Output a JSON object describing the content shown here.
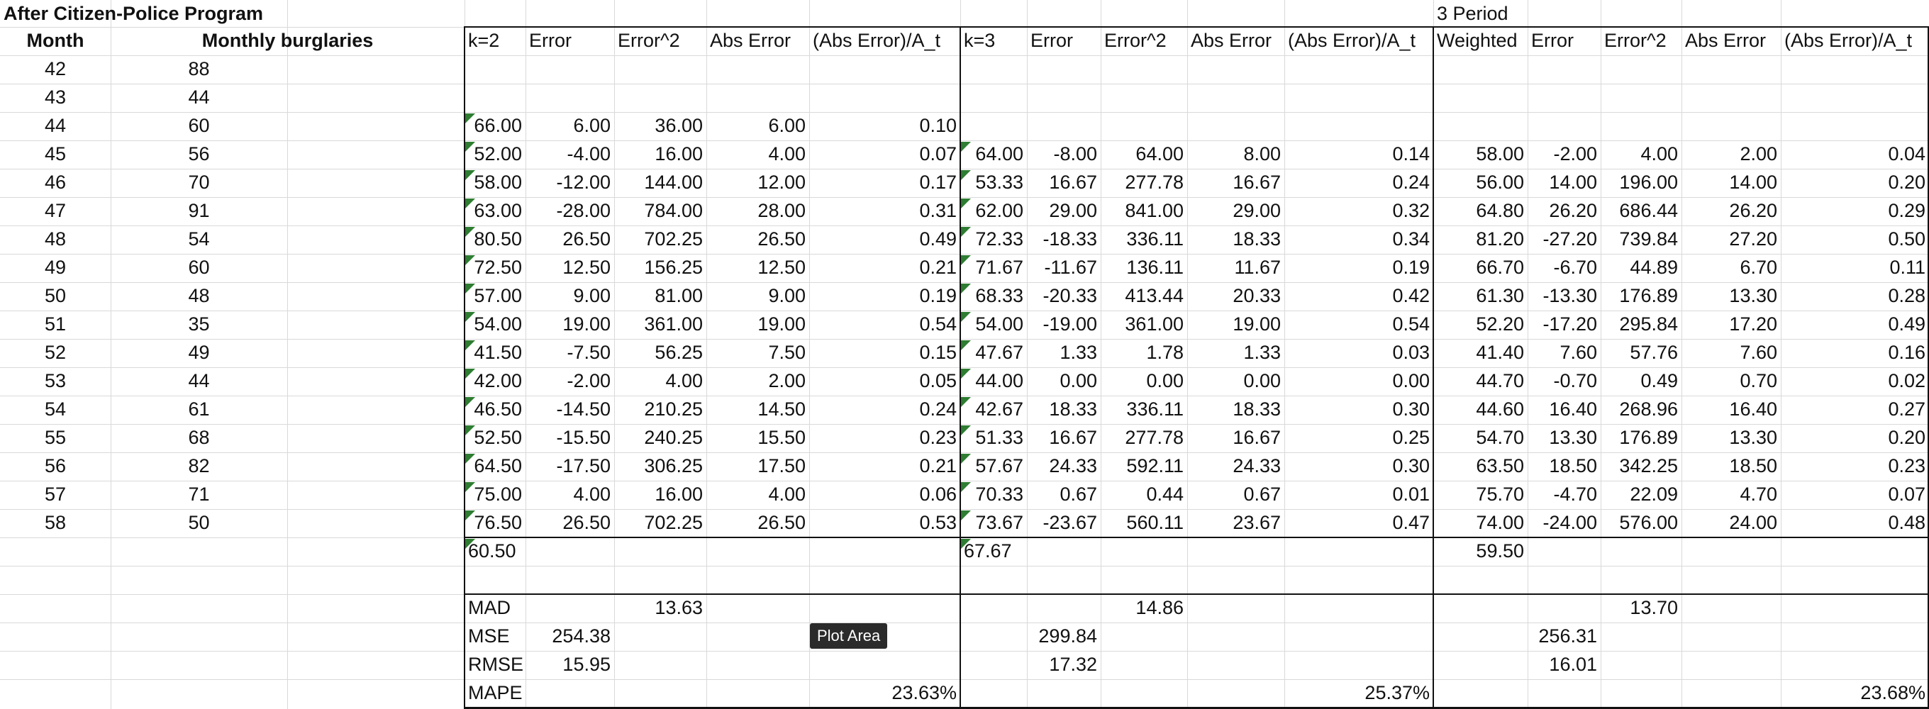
{
  "left": {
    "title": "After Citizen-Police Program",
    "month_header": "Month",
    "burglaries_header": "Monthly burglaries",
    "months": [
      "42",
      "43",
      "44",
      "45",
      "46",
      "47",
      "48",
      "49",
      "50",
      "51",
      "52",
      "53",
      "54",
      "55",
      "56",
      "57",
      "58"
    ],
    "burglaries": [
      "88",
      "44",
      "60",
      "56",
      "70",
      "91",
      "54",
      "60",
      "48",
      "35",
      "49",
      "44",
      "61",
      "68",
      "82",
      "71",
      "50"
    ]
  },
  "k2": {
    "headers": [
      "k=2",
      "Error",
      "Error^2",
      "Abs Error",
      "(Abs Error)/A_t"
    ],
    "rows": [
      [
        "66.00",
        "6.00",
        "36.00",
        "6.00",
        "0.10"
      ],
      [
        "52.00",
        "-4.00",
        "16.00",
        "4.00",
        "0.07"
      ],
      [
        "58.00",
        "-12.00",
        "144.00",
        "12.00",
        "0.17"
      ],
      [
        "63.00",
        "-28.00",
        "784.00",
        "28.00",
        "0.31"
      ],
      [
        "80.50",
        "26.50",
        "702.25",
        "26.50",
        "0.49"
      ],
      [
        "72.50",
        "12.50",
        "156.25",
        "12.50",
        "0.21"
      ],
      [
        "57.00",
        "9.00",
        "81.00",
        "9.00",
        "0.19"
      ],
      [
        "54.00",
        "19.00",
        "361.00",
        "19.00",
        "0.54"
      ],
      [
        "41.50",
        "-7.50",
        "56.25",
        "7.50",
        "0.15"
      ],
      [
        "42.00",
        "-2.00",
        "4.00",
        "2.00",
        "0.05"
      ],
      [
        "46.50",
        "-14.50",
        "210.25",
        "14.50",
        "0.24"
      ],
      [
        "52.50",
        "-15.50",
        "240.25",
        "15.50",
        "0.23"
      ],
      [
        "64.50",
        "-17.50",
        "306.25",
        "17.50",
        "0.21"
      ],
      [
        "75.00",
        "4.00",
        "16.00",
        "4.00",
        "0.06"
      ],
      [
        "76.50",
        "26.50",
        "702.25",
        "26.50",
        "0.53"
      ]
    ],
    "next_forecast": "60.50",
    "mad": "13.63",
    "mse": "254.38",
    "rmse": "15.95",
    "mape": "23.63%"
  },
  "k3": {
    "headers": [
      "k=3",
      "Error",
      "Error^2",
      "Abs Error",
      "(Abs Error)/A_t"
    ],
    "rows": [
      [
        "64.00",
        "-8.00",
        "64.00",
        "8.00",
        "0.14"
      ],
      [
        "53.33",
        "16.67",
        "277.78",
        "16.67",
        "0.24"
      ],
      [
        "62.00",
        "29.00",
        "841.00",
        "29.00",
        "0.32"
      ],
      [
        "72.33",
        "-18.33",
        "336.11",
        "18.33",
        "0.34"
      ],
      [
        "71.67",
        "-11.67",
        "136.11",
        "11.67",
        "0.19"
      ],
      [
        "68.33",
        "-20.33",
        "413.44",
        "20.33",
        "0.42"
      ],
      [
        "54.00",
        "-19.00",
        "361.00",
        "19.00",
        "0.54"
      ],
      [
        "47.67",
        "1.33",
        "1.78",
        "1.33",
        "0.03"
      ],
      [
        "44.00",
        "0.00",
        "0.00",
        "0.00",
        "0.00"
      ],
      [
        "42.67",
        "18.33",
        "336.11",
        "18.33",
        "0.30"
      ],
      [
        "51.33",
        "16.67",
        "277.78",
        "16.67",
        "0.25"
      ],
      [
        "57.67",
        "24.33",
        "592.11",
        "24.33",
        "0.30"
      ],
      [
        "70.33",
        "0.67",
        "0.44",
        "0.67",
        "0.01"
      ],
      [
        "73.67",
        "-23.67",
        "560.11",
        "23.67",
        "0.47"
      ]
    ],
    "next_forecast": "67.67",
    "mad": "14.86",
    "mse": "299.84",
    "rmse": "17.32",
    "mape": "25.37%"
  },
  "w3": {
    "section_title": "3 Period",
    "headers": [
      "Weighted",
      "Error",
      "Error^2",
      "Abs Error",
      "(Abs Error)/A_t"
    ],
    "rows": [
      [
        "58.00",
        "-2.00",
        "4.00",
        "2.00",
        "0.04"
      ],
      [
        "56.00",
        "14.00",
        "196.00",
        "14.00",
        "0.20"
      ],
      [
        "64.80",
        "26.20",
        "686.44",
        "26.20",
        "0.29"
      ],
      [
        "81.20",
        "-27.20",
        "739.84",
        "27.20",
        "0.50"
      ],
      [
        "66.70",
        "-6.70",
        "44.89",
        "6.70",
        "0.11"
      ],
      [
        "61.30",
        "-13.30",
        "176.89",
        "13.30",
        "0.28"
      ],
      [
        "52.20",
        "-17.20",
        "295.84",
        "17.20",
        "0.49"
      ],
      [
        "41.40",
        "7.60",
        "57.76",
        "7.60",
        "0.16"
      ],
      [
        "44.70",
        "-0.70",
        "0.49",
        "0.70",
        "0.02"
      ],
      [
        "44.60",
        "16.40",
        "268.96",
        "16.40",
        "0.27"
      ],
      [
        "54.70",
        "13.30",
        "176.89",
        "13.30",
        "0.20"
      ],
      [
        "63.50",
        "18.50",
        "342.25",
        "18.50",
        "0.23"
      ],
      [
        "75.70",
        "-4.70",
        "22.09",
        "4.70",
        "0.07"
      ],
      [
        "74.00",
        "-24.00",
        "576.00",
        "24.00",
        "0.48"
      ]
    ],
    "next_forecast": "59.50",
    "mad": "13.70",
    "mse": "256.31",
    "rmse": "16.01",
    "mape": "23.68%"
  },
  "metric_labels": [
    "MAD",
    "MSE",
    "RMSE",
    "MAPE"
  ],
  "tooltip": "Plot Area",
  "colors": {
    "error_indicator": "#2e7d32",
    "grid": "#d9d9d9",
    "border": "#111111",
    "tooltip_bg": "#2b2b2b"
  }
}
